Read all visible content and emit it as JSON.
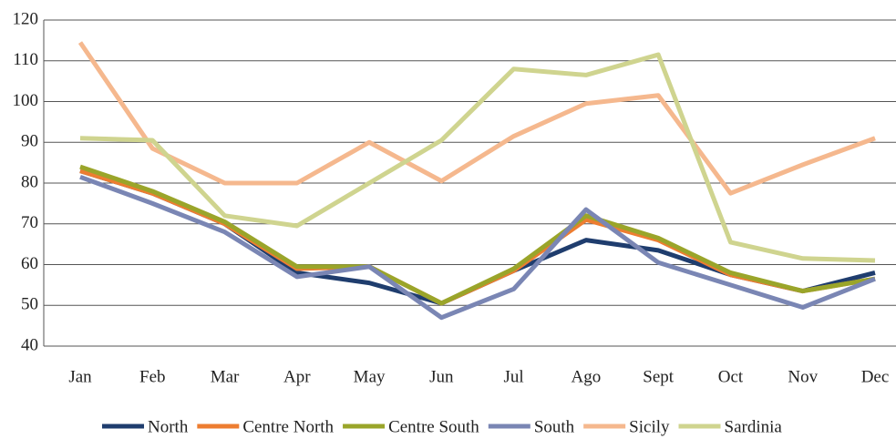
{
  "chart_data": {
    "type": "line",
    "categories": [
      "Jan",
      "Feb",
      "Mar",
      "Apr",
      "May",
      "Jun",
      "Jul",
      "Ago",
      "Sept",
      "Oct",
      "Nov",
      "Dec"
    ],
    "ylim": [
      40,
      120
    ],
    "yticks": [
      40,
      50,
      60,
      70,
      80,
      90,
      100,
      110,
      120
    ],
    "grid": true,
    "legend": "bottom",
    "series": [
      {
        "name": "North",
        "color": "#1f3d6e",
        "values": [
          83,
          77.5,
          70,
          58,
          55.5,
          50.5,
          58.5,
          66,
          63.5,
          57.5,
          53.5,
          58
        ]
      },
      {
        "name": "Centre North",
        "color": "#ed7d31",
        "values": [
          83,
          77.5,
          70,
          59,
          59.5,
          50.5,
          58.5,
          71,
          66,
          57.5,
          53.5,
          56.5
        ]
      },
      {
        "name": "Centre South",
        "color": "#9aa52a",
        "values": [
          84,
          78,
          70.5,
          59.5,
          59.5,
          50.5,
          59,
          72,
          66.5,
          58,
          53.5,
          56.5
        ]
      },
      {
        "name": "South",
        "color": "#7a86b4",
        "values": [
          81.5,
          75,
          68,
          57,
          59.5,
          47,
          54,
          73.5,
          60.5,
          55,
          49.5,
          56.5
        ]
      },
      {
        "name": "Sicily",
        "color": "#f5b88e",
        "values": [
          114.5,
          88.5,
          80,
          80,
          90,
          80.5,
          91.5,
          99.5,
          101.5,
          77.5,
          84.5,
          91
        ]
      },
      {
        "name": "Sardinia",
        "color": "#cfd48f",
        "values": [
          91,
          90.5,
          72,
          69.5,
          80,
          90.5,
          108,
          106.5,
          111.5,
          65.5,
          61.5,
          61
        ]
      }
    ]
  }
}
